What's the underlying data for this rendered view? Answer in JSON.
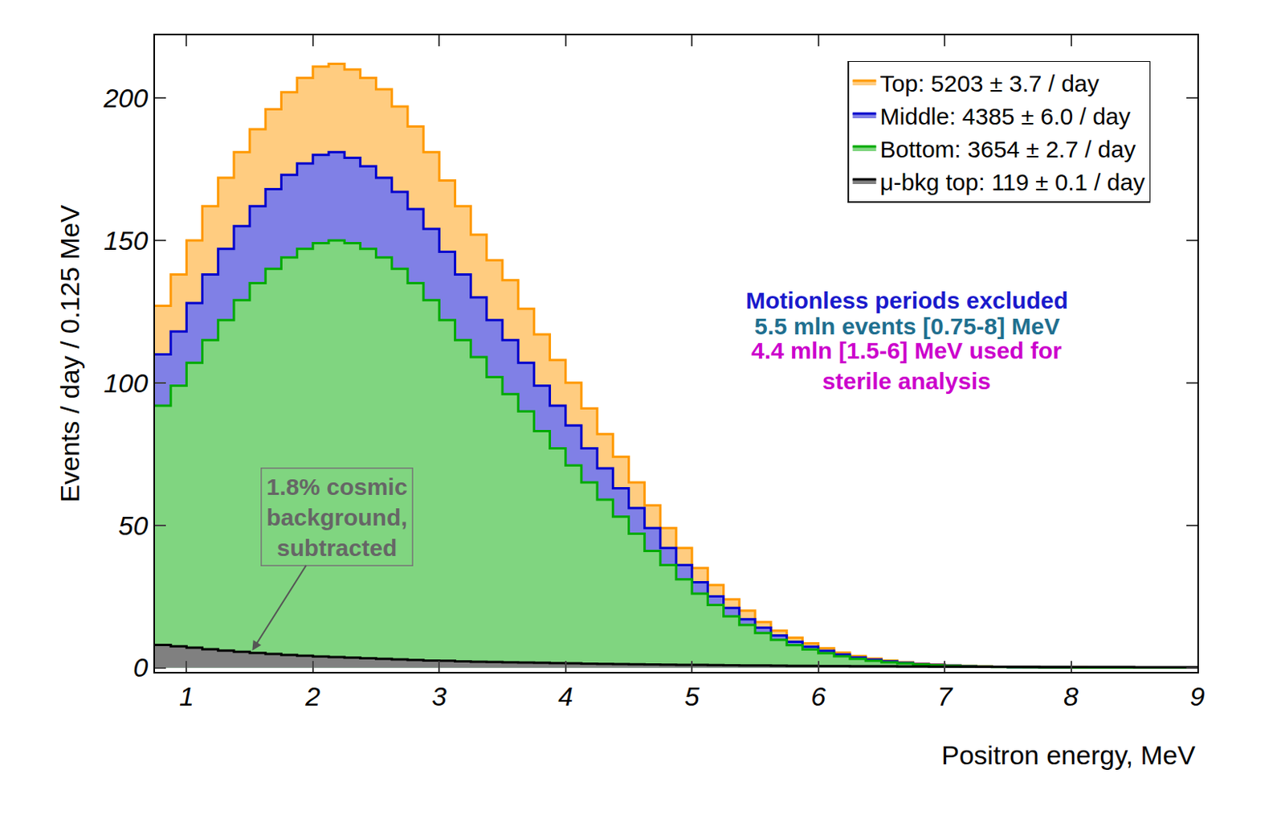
{
  "chart_data": {
    "type": "histogram",
    "x_label": "Positron energy, MeV",
    "y_label": "Events / day / 0.125 MeV",
    "xlim": [
      0.75,
      9
    ],
    "ylim": [
      -1.5,
      222
    ],
    "xticks": [
      1,
      2,
      3,
      4,
      5,
      6,
      7,
      8,
      9
    ],
    "yticks": [
      0,
      50,
      100,
      150,
      200
    ],
    "legend": "upper right",
    "bins": [
      0.75,
      0.875,
      1,
      1.125,
      1.25,
      1.375,
      1.5,
      1.625,
      1.75,
      1.875,
      2,
      2.125,
      2.25,
      2.375,
      2.5,
      2.625,
      2.75,
      2.875,
      3,
      3.125,
      3.25,
      3.375,
      3.5,
      3.625,
      3.75,
      3.875,
      4,
      4.125,
      4.25,
      4.375,
      4.5,
      4.625,
      4.75,
      4.875,
      5,
      5.125,
      5.25,
      5.375,
      5.5,
      5.625,
      5.75,
      5.875,
      6,
      6.125,
      6.25,
      6.375,
      6.5,
      6.625,
      6.75,
      6.875,
      7,
      7.125,
      7.25,
      7.375,
      7.5,
      7.625,
      7.75,
      7.875,
      8,
      8.125,
      8.25,
      8.375,
      8.5,
      8.625,
      8.75,
      8.875,
      9
    ],
    "series": [
      {
        "name": "Top: 5203 ± 3.7 / day",
        "color": "#ff9900",
        "values": [
          127,
          138,
          150,
          162,
          172,
          181,
          189,
          196,
          202,
          207,
          211,
          212,
          210,
          207,
          203,
          197,
          190,
          181,
          171,
          162,
          152,
          143,
          136,
          126,
          117,
          108,
          100,
          91,
          82,
          74,
          65,
          57,
          49,
          42,
          35,
          29,
          24,
          20,
          16,
          13,
          10.5,
          8.5,
          6.8,
          5.3,
          4.1,
          3.2,
          2.5,
          1.9,
          1.4,
          1.1,
          0.8,
          0.6,
          0.45,
          0.3,
          0.2,
          0.15,
          0.1,
          0.08,
          0.05,
          0.04,
          0.03,
          0.02,
          0.02,
          0.01,
          0.01,
          0.01
        ]
      },
      {
        "name": "Middle: 4385 ± 6.0 / day",
        "color": "#0000cc",
        "values": [
          110,
          118,
          128,
          138,
          147,
          155,
          162,
          168,
          173,
          177,
          180,
          181,
          179,
          176,
          172,
          167,
          161,
          154,
          146,
          138,
          130,
          122,
          115,
          107,
          99,
          92,
          85,
          77,
          70,
          63,
          56,
          49,
          42,
          36,
          30,
          25,
          21,
          17,
          14,
          11.3,
          9.1,
          7.4,
          5.9,
          4.6,
          3.6,
          2.8,
          2.2,
          1.7,
          1.25,
          0.95,
          0.7,
          0.52,
          0.38,
          0.27,
          0.18,
          0.13,
          0.09,
          0.07,
          0.04,
          0.03,
          0.02,
          0.02,
          0.01,
          0.01,
          0.01,
          0.01
        ]
      },
      {
        "name": "Bottom: 3654 ± 2.7 / day",
        "color": "#00aa00",
        "values": [
          92,
          99,
          107,
          115,
          122,
          129,
          135,
          140,
          144,
          147,
          149,
          150,
          149,
          147,
          144,
          140,
          135,
          129,
          122,
          115,
          109,
          102,
          96,
          90,
          83,
          77,
          71,
          65,
          59,
          53,
          47,
          41,
          36,
          31,
          26,
          22,
          18,
          15,
          12.2,
          9.8,
          7.9,
          6.4,
          5.1,
          4.0,
          3.1,
          2.4,
          1.9,
          1.5,
          1.1,
          0.82,
          0.6,
          0.45,
          0.33,
          0.24,
          0.16,
          0.12,
          0.08,
          0.06,
          0.04,
          0.03,
          0.02,
          0.02,
          0.01,
          0.01,
          0.01,
          0.01
        ]
      },
      {
        "name": "μ-bkg top: 119 ± 0.1 / day",
        "color": "#000000",
        "values": [
          8,
          7.5,
          7,
          6.5,
          6,
          5.6,
          5.2,
          4.8,
          4.5,
          4.2,
          3.9,
          3.7,
          3.5,
          3.3,
          3.1,
          2.9,
          2.7,
          2.5,
          2.4,
          2.2,
          2.1,
          2.0,
          1.9,
          1.8,
          1.7,
          1.6,
          1.5,
          1.4,
          1.3,
          1.25,
          1.2,
          1.1,
          1.05,
          1.0,
          0.95,
          0.9,
          0.85,
          0.8,
          0.75,
          0.7,
          0.66,
          0.62,
          0.58,
          0.55,
          0.52,
          0.49,
          0.46,
          0.43,
          0.4,
          0.38,
          0.36,
          0.34,
          0.32,
          0.3,
          0.28,
          0.26,
          0.25,
          0.24,
          0.22,
          0.21,
          0.2,
          0.19,
          0.18,
          0.17,
          0.16,
          0.15
        ]
      }
    ],
    "annotations": [
      {
        "lines": [
          "Motionless periods excluded"
        ],
        "color": "#1a1acc"
      },
      {
        "lines": [
          "5.5 mln events [0.75-8] MeV"
        ],
        "color": "#1f6f8f"
      },
      {
        "lines": [
          "4.4 mln [1.5-6] MeV used for",
          "sterile analysis"
        ],
        "color": "#cc00cc"
      },
      {
        "lines": [
          "1.8% cosmic",
          "background,",
          "subtracted"
        ],
        "color": "#666666"
      }
    ]
  }
}
